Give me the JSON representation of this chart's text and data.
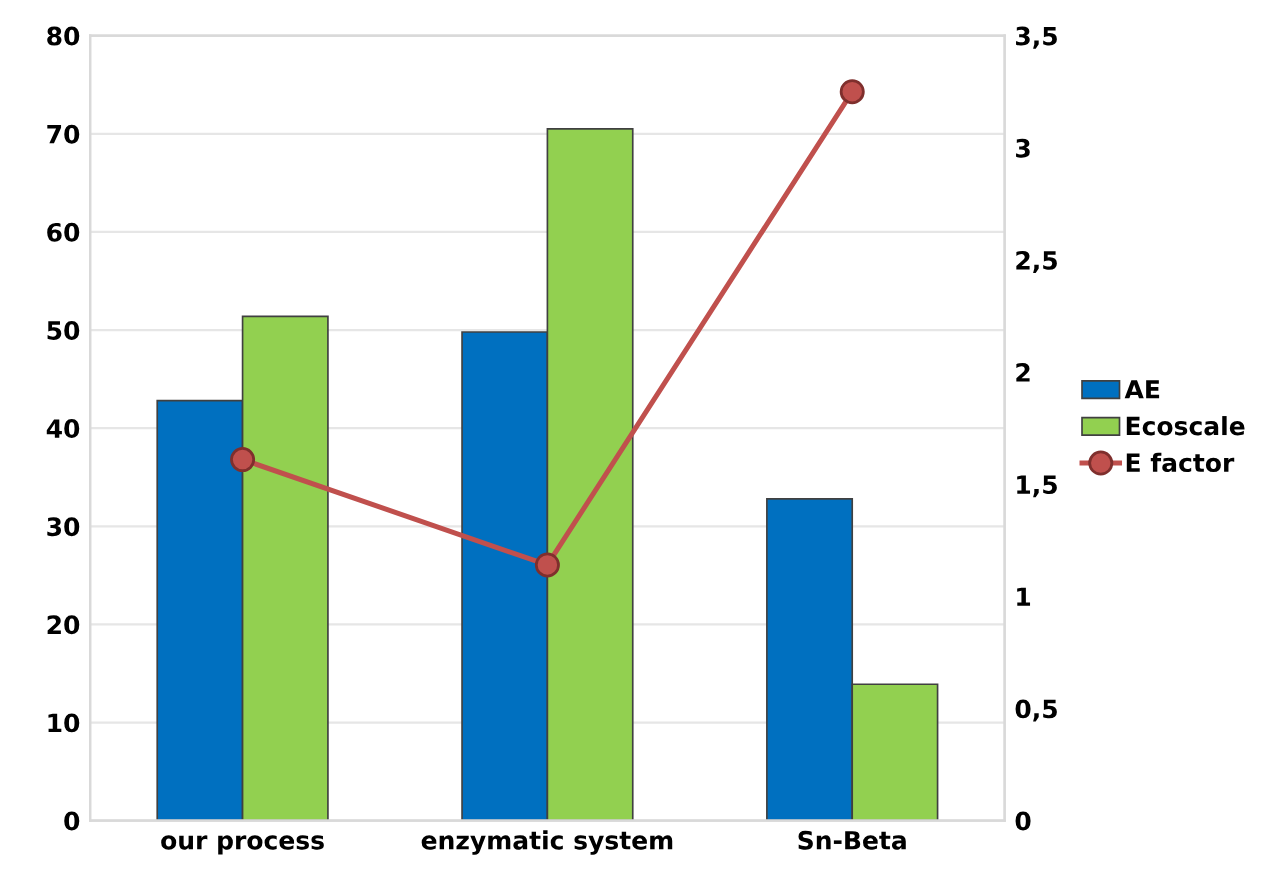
{
  "chart_data": {
    "type": "bar",
    "categories": [
      "our process",
      "enzymatic system",
      "Sn-Beta"
    ],
    "series": [
      {
        "name": "AE",
        "color": "#0070c0",
        "values": [
          42.8,
          49.8,
          32.8
        ]
      },
      {
        "name": "Ecoscale",
        "color": "#92d050",
        "values": [
          51.4,
          70.5,
          13.9
        ]
      },
      {
        "name": "E factor",
        "type": "line",
        "axis": "y2",
        "color": "#c0504d",
        "values": [
          1.61,
          1.14,
          3.25
        ]
      }
    ],
    "ylim": [
      0,
      80
    ],
    "yticks": [
      0,
      10,
      20,
      30,
      40,
      50,
      60,
      70,
      80
    ],
    "y2lim": [
      0,
      3.5
    ],
    "y2ticks": [
      0,
      {
        "value": 0.5,
        "label": "0,5"
      },
      1,
      {
        "value": 1.5,
        "label": "1,5"
      },
      2,
      {
        "value": 2.5,
        "label": "2,5"
      },
      3,
      {
        "value": 3.5,
        "label": "3,5"
      }
    ],
    "grid": "y",
    "legend": "right",
    "marker": "circle"
  }
}
